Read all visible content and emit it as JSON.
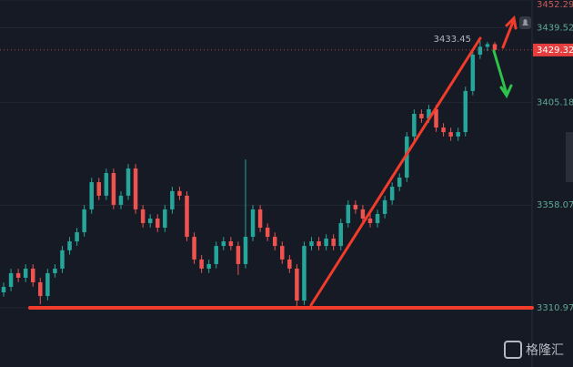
{
  "chart_data": {
    "type": "candlestick",
    "up_color": "#26a69a",
    "down_color": "#ef5350",
    "ylim": [
      3283.7,
      3452.29
    ],
    "yticks": [
      3310.97,
      3358.07,
      3405.18,
      3439.52,
      3452.29
    ],
    "grid": true,
    "last_price": 3429.32,
    "high_label": 3433.45,
    "watermark": "格隆汇",
    "open": [
      3318.0,
      3320.5,
      3326.8,
      3324.7,
      3328.9,
      3322.6,
      3316.3,
      3326.8,
      3328.9,
      3337.3,
      3341.4,
      3345.6,
      3356.1,
      3368.6,
      3362.4,
      3372.8,
      3358.2,
      3362.4,
      3374.9,
      3356.1,
      3349.8,
      3351.9,
      3347.7,
      3356.1,
      3364.5,
      3362.4,
      3343.5,
      3333.1,
      3328.9,
      3331.0,
      3339.3,
      3341.4,
      3339.3,
      3331.0,
      3343.5,
      3356.1,
      3347.7,
      3343.5,
      3339.3,
      3333.1,
      3328.9,
      3314.2,
      3339.3,
      3341.4,
      3339.3,
      3342.7,
      3339.3,
      3349.8,
      3358.2,
      3356.1,
      3351.9,
      3349.8,
      3354.0,
      3360.3,
      3366.5,
      3370.7,
      3389.6,
      3400.0,
      3397.9,
      3402.1,
      3393.7,
      3391.6,
      3389.6,
      3391.6,
      3410.5,
      3427.2,
      3430.8,
      3432.0
    ],
    "high": [
      3322.5,
      3328.8,
      3328.8,
      3330.9,
      3330.9,
      3324.6,
      3328.8,
      3330.9,
      3339.3,
      3343.4,
      3347.6,
      3358.1,
      3370.6,
      3370.6,
      3374.8,
      3374.8,
      3364.4,
      3376.9,
      3376.9,
      3358.1,
      3353.9,
      3353.9,
      3358.1,
      3366.5,
      3366.5,
      3364.4,
      3345.5,
      3335.1,
      3333.0,
      3341.3,
      3343.4,
      3343.4,
      3341.3,
      3379.0,
      3358.1,
      3358.1,
      3349.7,
      3345.5,
      3341.3,
      3335.1,
      3330.9,
      3341.3,
      3343.4,
      3343.4,
      3344.7,
      3344.7,
      3351.8,
      3360.2,
      3360.2,
      3358.1,
      3353.9,
      3356.0,
      3362.3,
      3368.5,
      3372.7,
      3391.6,
      3402.0,
      3402.0,
      3404.1,
      3404.1,
      3395.7,
      3393.6,
      3393.6,
      3412.5,
      3429.2,
      3433.45,
      3433.0,
      3433.0
    ],
    "low": [
      3316.0,
      3318.5,
      3322.7,
      3322.7,
      3320.6,
      3312.5,
      3314.3,
      3324.8,
      3326.9,
      3335.3,
      3339.4,
      3343.6,
      3354.1,
      3360.4,
      3360.4,
      3356.2,
      3356.2,
      3360.4,
      3354.1,
      3347.8,
      3347.8,
      3345.7,
      3345.7,
      3354.1,
      3360.4,
      3341.5,
      3331.1,
      3326.9,
      3326.9,
      3329.0,
      3337.3,
      3337.3,
      3326.0,
      3329.0,
      3341.5,
      3345.7,
      3341.5,
      3337.3,
      3331.1,
      3326.9,
      3311.0,
      3312.2,
      3337.3,
      3337.3,
      3337.3,
      3337.3,
      3337.3,
      3347.8,
      3354.1,
      3349.9,
      3347.8,
      3347.8,
      3352.0,
      3358.3,
      3364.5,
      3368.7,
      3387.6,
      3395.9,
      3395.9,
      3391.7,
      3389.6,
      3387.6,
      3387.6,
      3389.6,
      3408.5,
      3425.2,
      3428.8,
      3427.3
    ],
    "close": [
      3320.5,
      3326.8,
      3324.7,
      3328.9,
      3322.6,
      3316.3,
      3326.8,
      3328.9,
      3337.3,
      3341.4,
      3345.6,
      3356.1,
      3368.6,
      3362.4,
      3372.8,
      3358.2,
      3362.4,
      3374.9,
      3356.1,
      3349.8,
      3351.9,
      3347.7,
      3356.1,
      3364.5,
      3362.4,
      3343.5,
      3333.1,
      3328.9,
      3331.0,
      3339.3,
      3341.4,
      3339.3,
      3331.0,
      3343.5,
      3356.1,
      3347.7,
      3343.5,
      3339.3,
      3333.1,
      3328.9,
      3314.2,
      3339.3,
      3341.4,
      3339.3,
      3342.7,
      3339.3,
      3349.8,
      3358.2,
      3356.1,
      3351.9,
      3349.8,
      3354.0,
      3360.3,
      3366.5,
      3370.7,
      3389.6,
      3400.0,
      3397.9,
      3402.1,
      3393.7,
      3391.6,
      3389.6,
      3391.6,
      3410.5,
      3427.2,
      3430.8,
      3432.0,
      3429.32
    ]
  }
}
